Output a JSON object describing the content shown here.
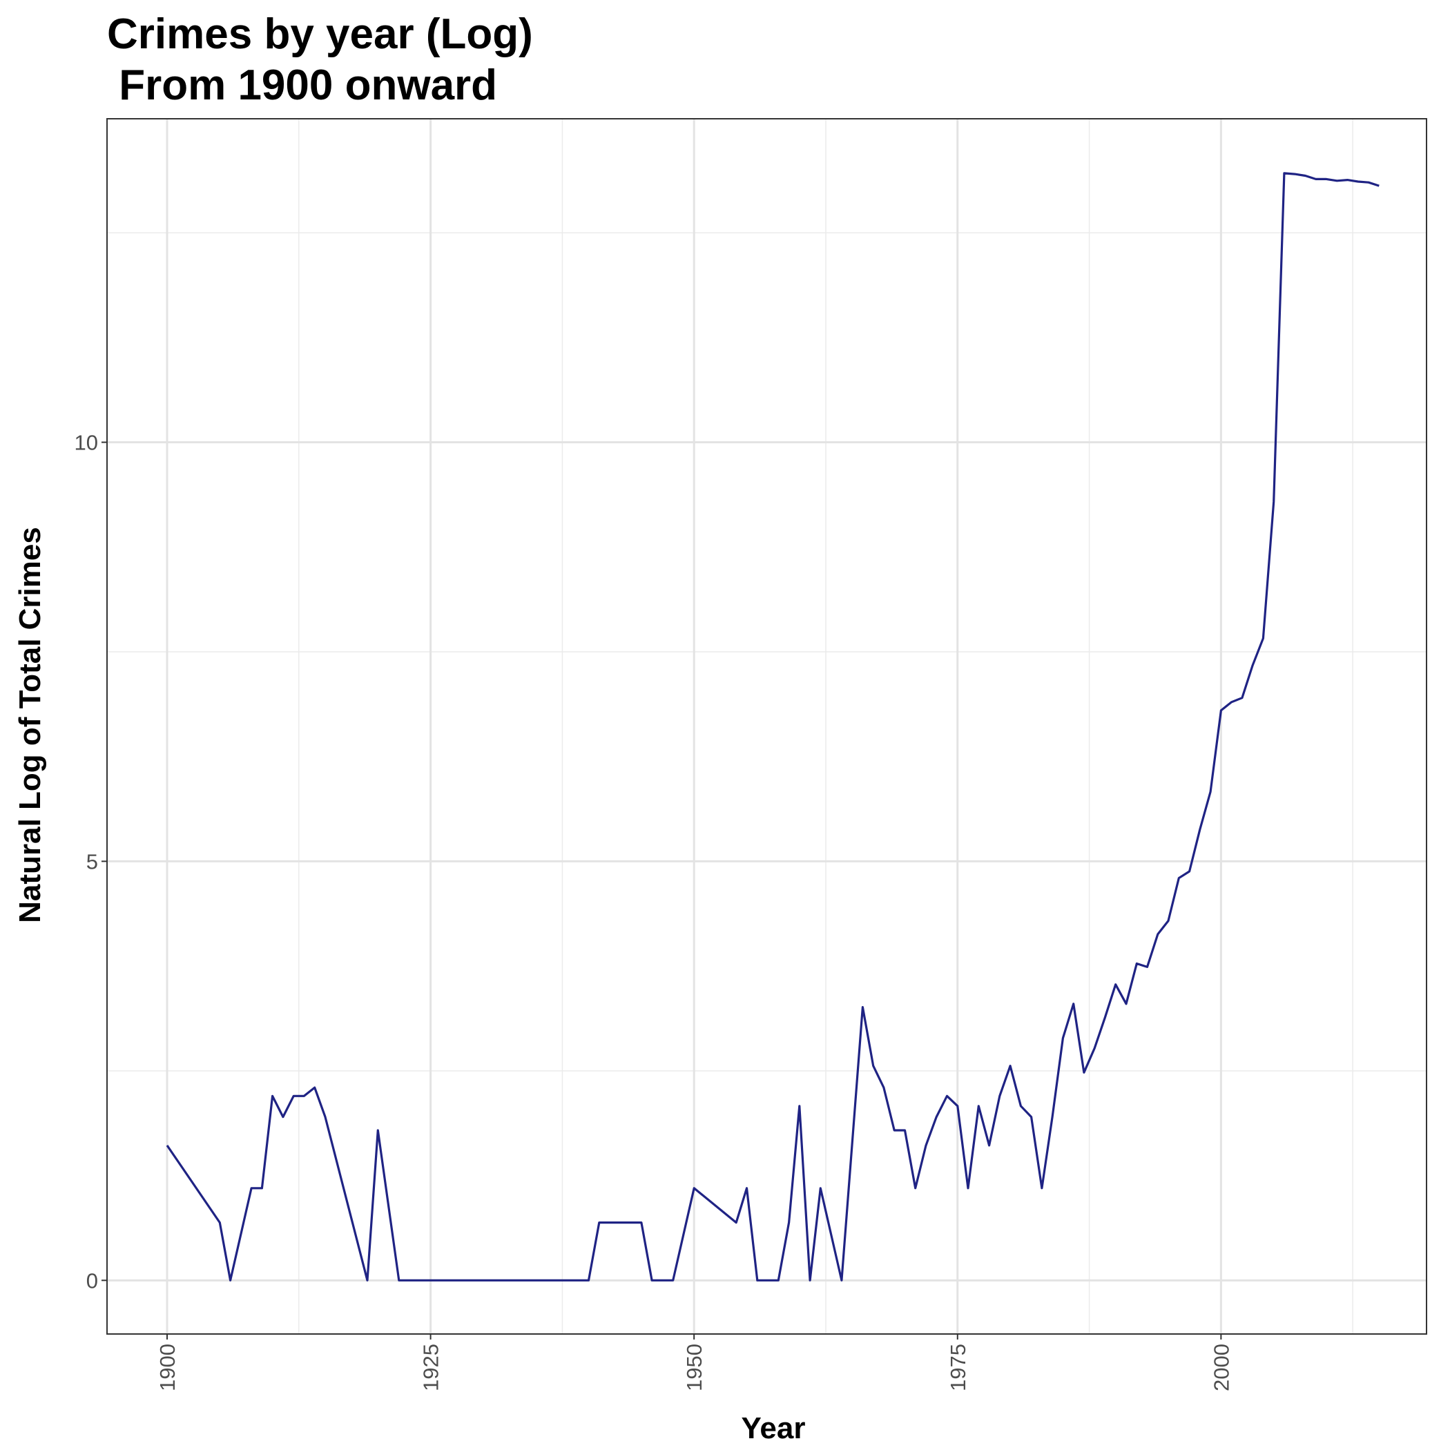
{
  "chart_data": {
    "type": "line",
    "title_line1": "Crimes by year (Log)",
    "title_line2": " From 1900 onward",
    "xlabel": "Year",
    "ylabel": "Natural Log of Total Crimes",
    "xlim": [
      1894.3,
      2019.5
    ],
    "ylim": [
      -0.64,
      13.86
    ],
    "x_ticks": [
      1900,
      1925,
      1950,
      1975,
      2000
    ],
    "x_tick_labels": [
      "1900",
      "1925",
      "1950",
      "1975",
      "2000"
    ],
    "x_minor_ticks": [
      1912.5,
      1937.5,
      1962.5,
      1987.5,
      2012.5
    ],
    "y_ticks": [
      0,
      5,
      10
    ],
    "y_tick_labels": [
      "0",
      "5",
      "10"
    ],
    "y_minor_ticks": [
      2.5,
      7.5,
      12.5
    ],
    "grid": true,
    "line_color": "#1f2384",
    "series": [
      {
        "x": [
          1900,
          1905,
          1906,
          1908,
          1909,
          1910,
          1911,
          1912,
          1913,
          1914,
          1915,
          1919,
          1920,
          1922,
          1940,
          1941,
          1945,
          1946,
          1948,
          1950,
          1954,
          1955,
          1956,
          1958,
          1959,
          1960,
          1961,
          1962,
          1964,
          1966,
          1967,
          1968,
          1969,
          1970,
          1971,
          1972,
          1973,
          1974,
          1975,
          1976,
          1977,
          1978,
          1979,
          1980,
          1981,
          1982,
          1983,
          1984,
          1985,
          1986,
          1987,
          1988,
          1989,
          1990,
          1991,
          1992,
          1993,
          1994,
          1995,
          1996,
          1997,
          1998,
          1999,
          2000,
          2001,
          2002,
          2003,
          2004,
          2005,
          2006,
          2007,
          2008,
          2009,
          2010,
          2011,
          2012,
          2013,
          2014,
          2015
        ],
        "y": [
          1.61,
          0.69,
          0,
          1.1,
          1.1,
          2.2,
          1.95,
          2.2,
          2.2,
          2.3,
          1.95,
          0,
          1.79,
          0,
          0,
          0.69,
          0.69,
          0,
          0,
          1.1,
          0.69,
          1.1,
          0,
          0,
          0.69,
          2.08,
          0,
          1.1,
          0,
          3.26,
          2.56,
          2.3,
          1.79,
          1.79,
          1.1,
          1.61,
          1.95,
          2.2,
          2.08,
          1.1,
          2.08,
          1.61,
          2.2,
          2.56,
          2.08,
          1.95,
          1.1,
          1.95,
          2.89,
          3.3,
          2.48,
          2.77,
          3.14,
          3.53,
          3.3,
          3.78,
          3.74,
          4.13,
          4.29,
          4.8,
          4.88,
          5.38,
          5.83,
          6.8,
          6.9,
          6.95,
          7.34,
          7.66,
          9.29,
          13.21,
          13.2,
          13.18,
          13.14,
          13.14,
          13.12,
          13.13,
          13.11,
          13.1,
          13.06
        ]
      }
    ]
  }
}
